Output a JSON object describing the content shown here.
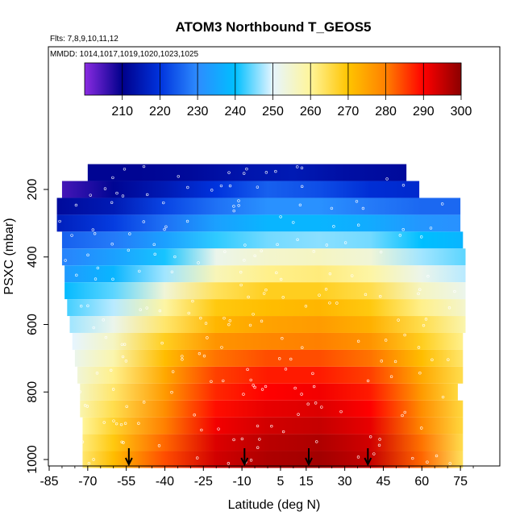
{
  "chart_data": {
    "type": "heatmap",
    "title": "ATOM3 Northbound T_GEOS5",
    "subtitle_flights": "Flts: 7,8,9,10,11,12",
    "subtitle_dates": "MMDD: 1014,1017,1019,1020,1023,1025",
    "xlabel": "Latitude (deg N)",
    "ylabel": "PSXC (mbar)",
    "xlim": [
      -85,
      85
    ],
    "ylim": [
      1000,
      100
    ],
    "y_reversed": true,
    "x_ticks": [
      -85,
      -70,
      -55,
      -40,
      -25,
      -10,
      5,
      15,
      30,
      45,
      60,
      75
    ],
    "x_tick_labels": [
      "-85",
      "-70",
      "-55",
      "-40",
      "-25",
      "-10",
      "5",
      "15",
      "30",
      "45",
      "60",
      "75"
    ],
    "y_ticks": [
      200,
      400,
      600,
      800,
      1000
    ],
    "y_tick_labels": [
      "200",
      "400",
      "600",
      "800",
      "1000"
    ],
    "colorbar": {
      "min": 200,
      "max": 300,
      "ticks": [
        210,
        220,
        230,
        240,
        250,
        260,
        270,
        280,
        290,
        300
      ],
      "tick_labels": [
        "210",
        "220",
        "230",
        "240",
        "250",
        "260",
        "270",
        "280",
        "290",
        "300"
      ],
      "stops": [
        {
          "value": 200,
          "color": "#8a2be2"
        },
        {
          "value": 210,
          "color": "#00008b"
        },
        {
          "value": 220,
          "color": "#0033dd"
        },
        {
          "value": 230,
          "color": "#2d8cff"
        },
        {
          "value": 240,
          "color": "#00bfff"
        },
        {
          "value": 250,
          "color": "#e6f5ff"
        },
        {
          "value": 260,
          "color": "#fff59a"
        },
        {
          "value": 270,
          "color": "#ffc400"
        },
        {
          "value": 280,
          "color": "#ff8000"
        },
        {
          "value": 290,
          "color": "#ff0000"
        },
        {
          "value": 300,
          "color": "#8b0000"
        }
      ]
    },
    "pressure_levels": [
      150,
      200,
      250,
      300,
      350,
      400,
      450,
      500,
      550,
      600,
      650,
      700,
      750,
      800,
      850,
      900,
      950,
      1000
    ],
    "level_lat_ranges": [
      [
        -70,
        54
      ],
      [
        -80,
        59
      ],
      [
        -82,
        75
      ],
      [
        -82,
        75
      ],
      [
        -80,
        76
      ],
      [
        -80,
        77
      ],
      [
        -79,
        77
      ],
      [
        -79,
        77
      ],
      [
        -78,
        77
      ],
      [
        -77,
        77
      ],
      [
        -76,
        76
      ],
      [
        -75,
        76
      ],
      [
        -74,
        76
      ],
      [
        -73,
        74
      ],
      [
        -73,
        76
      ],
      [
        -72,
        76
      ],
      [
        -72,
        76
      ],
      [
        -72,
        76
      ]
    ],
    "level_temperatures": [
      {
        "pressure": 150,
        "lat": [
          -70,
          -50,
          -30,
          -10,
          10,
          30,
          54
        ],
        "temp": [
          211,
          211,
          212,
          214,
          215,
          213,
          212
        ]
      },
      {
        "pressure": 200,
        "lat": [
          -80,
          -60,
          -40,
          -20,
          0,
          20,
          40,
          59
        ],
        "temp": [
          205,
          211,
          215,
          220,
          225,
          223,
          219,
          218
        ]
      },
      {
        "pressure": 250,
        "lat": [
          -82,
          -60,
          -40,
          -20,
          0,
          20,
          40,
          60,
          75
        ],
        "temp": [
          212,
          215,
          222,
          227,
          231,
          231,
          228,
          226,
          226
        ]
      },
      {
        "pressure": 300,
        "lat": [
          -82,
          -60,
          -40,
          -20,
          0,
          20,
          40,
          60,
          75
        ],
        "temp": [
          216,
          221,
          227,
          234,
          238,
          238,
          236,
          232,
          231
        ]
      },
      {
        "pressure": 350,
        "lat": [
          -80,
          -60,
          -40,
          -20,
          0,
          20,
          40,
          60,
          76
        ],
        "temp": [
          225,
          228,
          234,
          242,
          245,
          246,
          245,
          240,
          238
        ]
      },
      {
        "pressure": 400,
        "lat": [
          -80,
          -60,
          -40,
          -20,
          0,
          20,
          40,
          60,
          77
        ],
        "temp": [
          229,
          234,
          241,
          252,
          255,
          256,
          254,
          247,
          244
        ]
      },
      {
        "pressure": 450,
        "lat": [
          -79,
          -60,
          -40,
          -20,
          0,
          20,
          40,
          60,
          77
        ],
        "temp": [
          233,
          238,
          247,
          257,
          261,
          262,
          259,
          252,
          248
        ]
      },
      {
        "pressure": 500,
        "lat": [
          -79,
          -60,
          -40,
          -20,
          0,
          20,
          40,
          60,
          77
        ],
        "temp": [
          239,
          244,
          254,
          264,
          268,
          268,
          265,
          256,
          252
        ]
      },
      {
        "pressure": 550,
        "lat": [
          -78,
          -60,
          -40,
          -20,
          0,
          20,
          40,
          60,
          77
        ],
        "temp": [
          243,
          248,
          259,
          269,
          271,
          272,
          269,
          261,
          255
        ]
      },
      {
        "pressure": 600,
        "lat": [
          -77,
          -60,
          -40,
          -20,
          0,
          20,
          40,
          60,
          77
        ],
        "temp": [
          247,
          252,
          263,
          272,
          275,
          276,
          273,
          265,
          258
        ]
      },
      {
        "pressure": 650,
        "lat": [
          -76,
          -60,
          -40,
          -20,
          0,
          20,
          40,
          60,
          76
        ],
        "temp": [
          250,
          256,
          268,
          277,
          279,
          280,
          277,
          268,
          261
        ]
      },
      {
        "pressure": 700,
        "lat": [
          -75,
          -60,
          -40,
          -20,
          0,
          20,
          40,
          60,
          76
        ],
        "temp": [
          252,
          258,
          271,
          281,
          284,
          284,
          281,
          271,
          263
        ]
      },
      {
        "pressure": 750,
        "lat": [
          -74,
          -60,
          -40,
          -20,
          0,
          20,
          40,
          60,
          76
        ],
        "temp": [
          254,
          261,
          274,
          285,
          288,
          288,
          285,
          274,
          265
        ]
      },
      {
        "pressure": 800,
        "lat": [
          -73,
          -60,
          -40,
          -20,
          0,
          20,
          40,
          60,
          74
        ],
        "temp": [
          256,
          263,
          276,
          287,
          290,
          291,
          288,
          276,
          266
        ]
      },
      {
        "pressure": 850,
        "lat": [
          -73,
          -60,
          -40,
          -20,
          0,
          20,
          40,
          60,
          76
        ],
        "temp": [
          258,
          265,
          278,
          289,
          292,
          293,
          290,
          278,
          266
        ]
      },
      {
        "pressure": 900,
        "lat": [
          -72,
          -60,
          -40,
          -20,
          0,
          20,
          40,
          60,
          76
        ],
        "temp": [
          260,
          267,
          280,
          291,
          294,
          295,
          292,
          279,
          266
        ]
      },
      {
        "pressure": 950,
        "lat": [
          -72,
          -60,
          -40,
          -20,
          0,
          20,
          40,
          60,
          76
        ],
        "temp": [
          262,
          269,
          282,
          293,
          296,
          297,
          294,
          281,
          265
        ]
      },
      {
        "pressure": 1000,
        "lat": [
          -72,
          -60,
          -40,
          -20,
          0,
          20,
          40,
          60,
          76
        ],
        "temp": [
          263,
          271,
          284,
          294,
          297,
          298,
          295,
          282,
          264
        ]
      }
    ],
    "arrow_latitudes": [
      -54,
      -9,
      16,
      39
    ],
    "grid": false,
    "legend": "colorbar, top inside plot"
  }
}
